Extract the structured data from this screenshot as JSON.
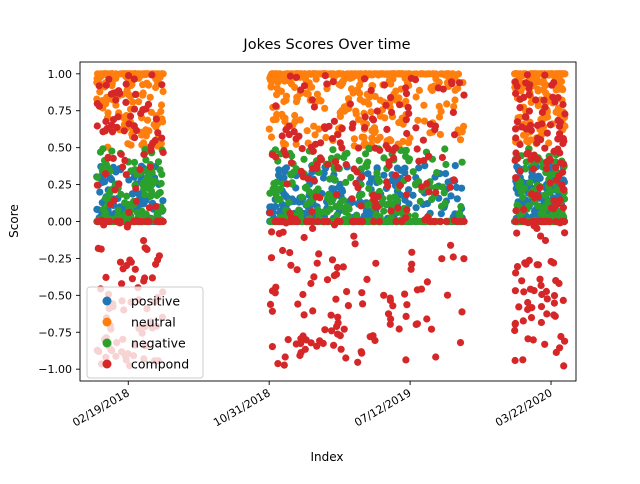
{
  "chart_data": {
    "type": "scatter",
    "title": "Jokes Scores Over time",
    "xlabel": "Index",
    "ylabel": "Score",
    "ylim": [
      -1.08,
      1.08
    ],
    "xlim": [
      "2017-11-24",
      "2020-05-06"
    ],
    "x_ticks": [
      {
        "date": "2018-02-19",
        "label": "02/19/2018"
      },
      {
        "date": "2018-10-31",
        "label": "10/31/2018"
      },
      {
        "date": "2019-07-12",
        "label": "07/12/2019"
      },
      {
        "date": "2020-03-22",
        "label": "03/22/2020"
      }
    ],
    "y_ticks": [
      -1.0,
      -0.75,
      -0.5,
      -0.25,
      0.0,
      0.25,
      0.5,
      0.75,
      1.0
    ],
    "y_tick_labels": [
      "−1.00",
      "−0.75",
      "−0.50",
      "−0.25",
      "0.00",
      "0.25",
      "0.50",
      "0.75",
      "1.00"
    ],
    "grid": false,
    "legend_placement": "lower-left",
    "date_ranges": [
      {
        "start": "2017-12-24",
        "end": "2018-04-23",
        "weight": 1.0
      },
      {
        "start": "2018-10-31",
        "end": "2019-07-10",
        "weight": 1.6
      },
      {
        "start": "2019-07-10",
        "end": "2019-10-19",
        "weight": 0.35
      },
      {
        "start": "2020-01-16",
        "end": "2020-04-16",
        "weight": 1.0
      }
    ],
    "series": [
      {
        "name": "positive",
        "color": "#1f77b4",
        "values_summary": {
          "min": 0.0,
          "max": 0.38,
          "typical": [
            0.0,
            0.3
          ]
        }
      },
      {
        "name": "neutral",
        "color": "#ff7f0e",
        "values_summary": {
          "min": 0.5,
          "max": 1.0,
          "typical": [
            0.6,
            1.0
          ]
        }
      },
      {
        "name": "negative",
        "color": "#2ca02c",
        "values_summary": {
          "min": 0.0,
          "max": 0.52,
          "typical": [
            0.0,
            0.3
          ]
        }
      },
      {
        "name": "compond",
        "color": "#d62728",
        "values_summary": {
          "min": -0.98,
          "max": 1.0,
          "typical": [
            -0.98,
            1.0
          ]
        }
      }
    ]
  }
}
